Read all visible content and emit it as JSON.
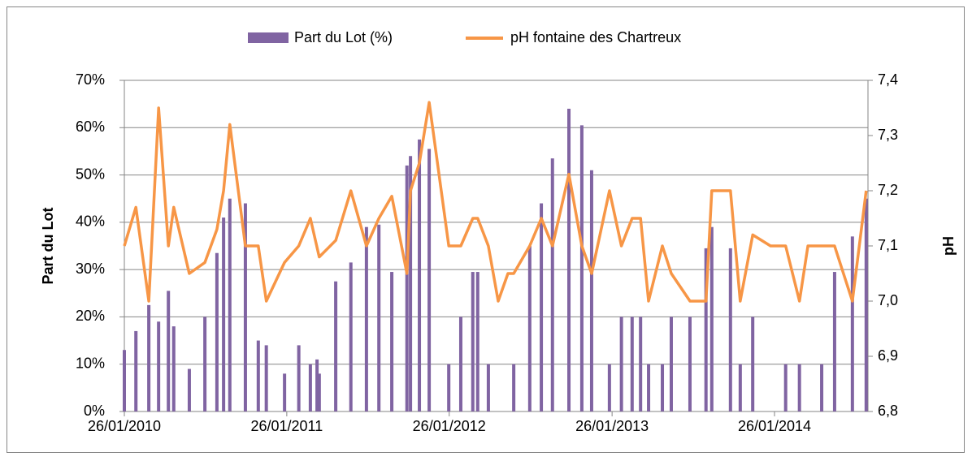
{
  "chart_data": {
    "type": "bar-line",
    "xlabel": null,
    "ylabel": "Part du Lot",
    "y2label": "pH",
    "xlim": [
      "2010-01-26",
      "2014-08-24"
    ],
    "xticks": [
      {
        "value": "2010-01-26",
        "label": "26/01/2010"
      },
      {
        "value": "2011-01-26",
        "label": "26/01/2011"
      },
      {
        "value": "2012-01-26",
        "label": "26/01/2012"
      },
      {
        "value": "2013-01-26",
        "label": "26/01/2013"
      },
      {
        "value": "2014-01-26",
        "label": "26/01/2014"
      }
    ],
    "ylim": [
      0,
      70
    ],
    "yticks": [
      {
        "value": 0,
        "label": "0%"
      },
      {
        "value": 10,
        "label": "10%"
      },
      {
        "value": 20,
        "label": "20%"
      },
      {
        "value": 30,
        "label": "30%"
      },
      {
        "value": 40,
        "label": "40%"
      },
      {
        "value": 50,
        "label": "50%"
      },
      {
        "value": 60,
        "label": "60%"
      },
      {
        "value": 70,
        "label": "70%"
      }
    ],
    "y2lim": [
      6.8,
      7.4
    ],
    "y2ticks": [
      {
        "value": 6.8,
        "label": "6,8"
      },
      {
        "value": 6.9,
        "label": "6,9"
      },
      {
        "value": 7.0,
        "label": "7,0"
      },
      {
        "value": 7.1,
        "label": "7,1"
      },
      {
        "value": 7.2,
        "label": "7,2"
      },
      {
        "value": 7.3,
        "label": "7,3"
      },
      {
        "value": 7.4,
        "label": "7,4"
      }
    ],
    "grid": true,
    "legend": "top",
    "series": [
      {
        "name": "Part du Lot (%)",
        "type": "bar",
        "color": "#8064a2",
        "x": [
          "2010-01-26",
          "2010-02-21",
          "2010-03-22",
          "2010-04-13",
          "2010-05-05",
          "2010-05-17",
          "2010-06-21",
          "2010-07-26",
          "2010-08-22",
          "2010-09-06",
          "2010-09-20",
          "2010-10-25",
          "2010-11-23",
          "2010-12-11",
          "2011-01-21",
          "2011-02-22",
          "2011-03-20",
          "2011-04-04",
          "2011-04-09",
          "2011-05-16",
          "2011-06-19",
          "2011-07-24",
          "2011-08-21",
          "2011-09-19",
          "2011-10-23",
          "2011-10-31",
          "2011-11-20",
          "2011-12-12",
          "2012-01-25",
          "2012-02-21",
          "2012-03-19",
          "2012-03-30",
          "2012-04-23",
          "2012-06-19",
          "2012-07-25",
          "2012-08-20",
          "2012-09-14",
          "2012-10-21",
          "2012-11-19",
          "2012-12-11",
          "2013-01-20",
          "2013-02-16",
          "2013-03-12",
          "2013-03-31",
          "2013-04-18",
          "2013-05-19",
          "2013-06-08",
          "2013-07-20",
          "2013-08-25",
          "2013-09-07",
          "2013-10-19",
          "2013-11-10",
          "2013-12-08",
          "2014-02-20",
          "2014-03-23",
          "2014-05-12",
          "2014-06-10",
          "2014-07-20",
          "2014-08-20"
        ],
        "values": [
          13,
          17,
          22.5,
          19,
          25.5,
          18,
          9,
          20,
          33.5,
          41,
          45,
          44,
          15,
          14,
          8,
          14,
          10,
          11,
          8,
          27.5,
          31.5,
          39,
          39.5,
          29.5,
          52,
          54,
          57.5,
          55.5,
          10,
          20,
          29.5,
          29.5,
          10,
          10,
          35,
          44,
          53.5,
          64,
          60.5,
          51,
          10,
          20,
          20,
          20,
          10,
          10,
          20,
          20,
          34.5,
          39,
          34.5,
          10,
          20,
          10,
          10,
          10,
          29.5,
          37,
          45
        ]
      },
      {
        "name": "pH fontaine des Chartreux",
        "type": "line",
        "axis": "y2",
        "color": "#f79646",
        "x": [
          "2010-01-26",
          "2010-02-21",
          "2010-03-22",
          "2010-04-13",
          "2010-05-05",
          "2010-05-17",
          "2010-06-21",
          "2010-07-26",
          "2010-08-22",
          "2010-09-06",
          "2010-09-20",
          "2010-10-25",
          "2010-11-23",
          "2010-12-11",
          "2011-01-21",
          "2011-02-22",
          "2011-03-20",
          "2011-04-09",
          "2011-05-16",
          "2011-06-19",
          "2011-07-24",
          "2011-08-21",
          "2011-09-19",
          "2011-10-23",
          "2011-10-31",
          "2011-11-20",
          "2011-12-12",
          "2012-01-25",
          "2012-02-21",
          "2012-03-19",
          "2012-03-30",
          "2012-04-23",
          "2012-05-15",
          "2012-06-06",
          "2012-06-19",
          "2012-07-25",
          "2012-08-20",
          "2012-09-14",
          "2012-10-21",
          "2012-11-19",
          "2012-12-11",
          "2013-01-20",
          "2013-02-16",
          "2013-03-12",
          "2013-03-31",
          "2013-04-18",
          "2013-05-19",
          "2013-06-08",
          "2013-07-20",
          "2013-08-25",
          "2013-09-07",
          "2013-10-19",
          "2013-11-10",
          "2013-12-08",
          "2014-01-17",
          "2014-02-20",
          "2014-03-23",
          "2014-04-11",
          "2014-06-10",
          "2014-07-20",
          "2014-08-20"
        ],
        "values": [
          7.1,
          7.17,
          7.0,
          7.35,
          7.1,
          7.17,
          7.05,
          7.07,
          7.13,
          7.2,
          7.32,
          7.1,
          7.1,
          7.0,
          7.07,
          7.1,
          7.15,
          7.08,
          7.11,
          7.2,
          7.1,
          7.15,
          7.19,
          7.05,
          7.2,
          7.25,
          7.36,
          7.1,
          7.1,
          7.15,
          7.15,
          7.1,
          7.0,
          7.05,
          7.05,
          7.1,
          7.15,
          7.1,
          7.23,
          7.1,
          7.05,
          7.2,
          7.1,
          7.15,
          7.15,
          7.0,
          7.1,
          7.05,
          7.0,
          7.0,
          7.2,
          7.2,
          7.0,
          7.12,
          7.1,
          7.1,
          7.0,
          7.1,
          7.1,
          7.0,
          7.2
        ]
      }
    ]
  }
}
